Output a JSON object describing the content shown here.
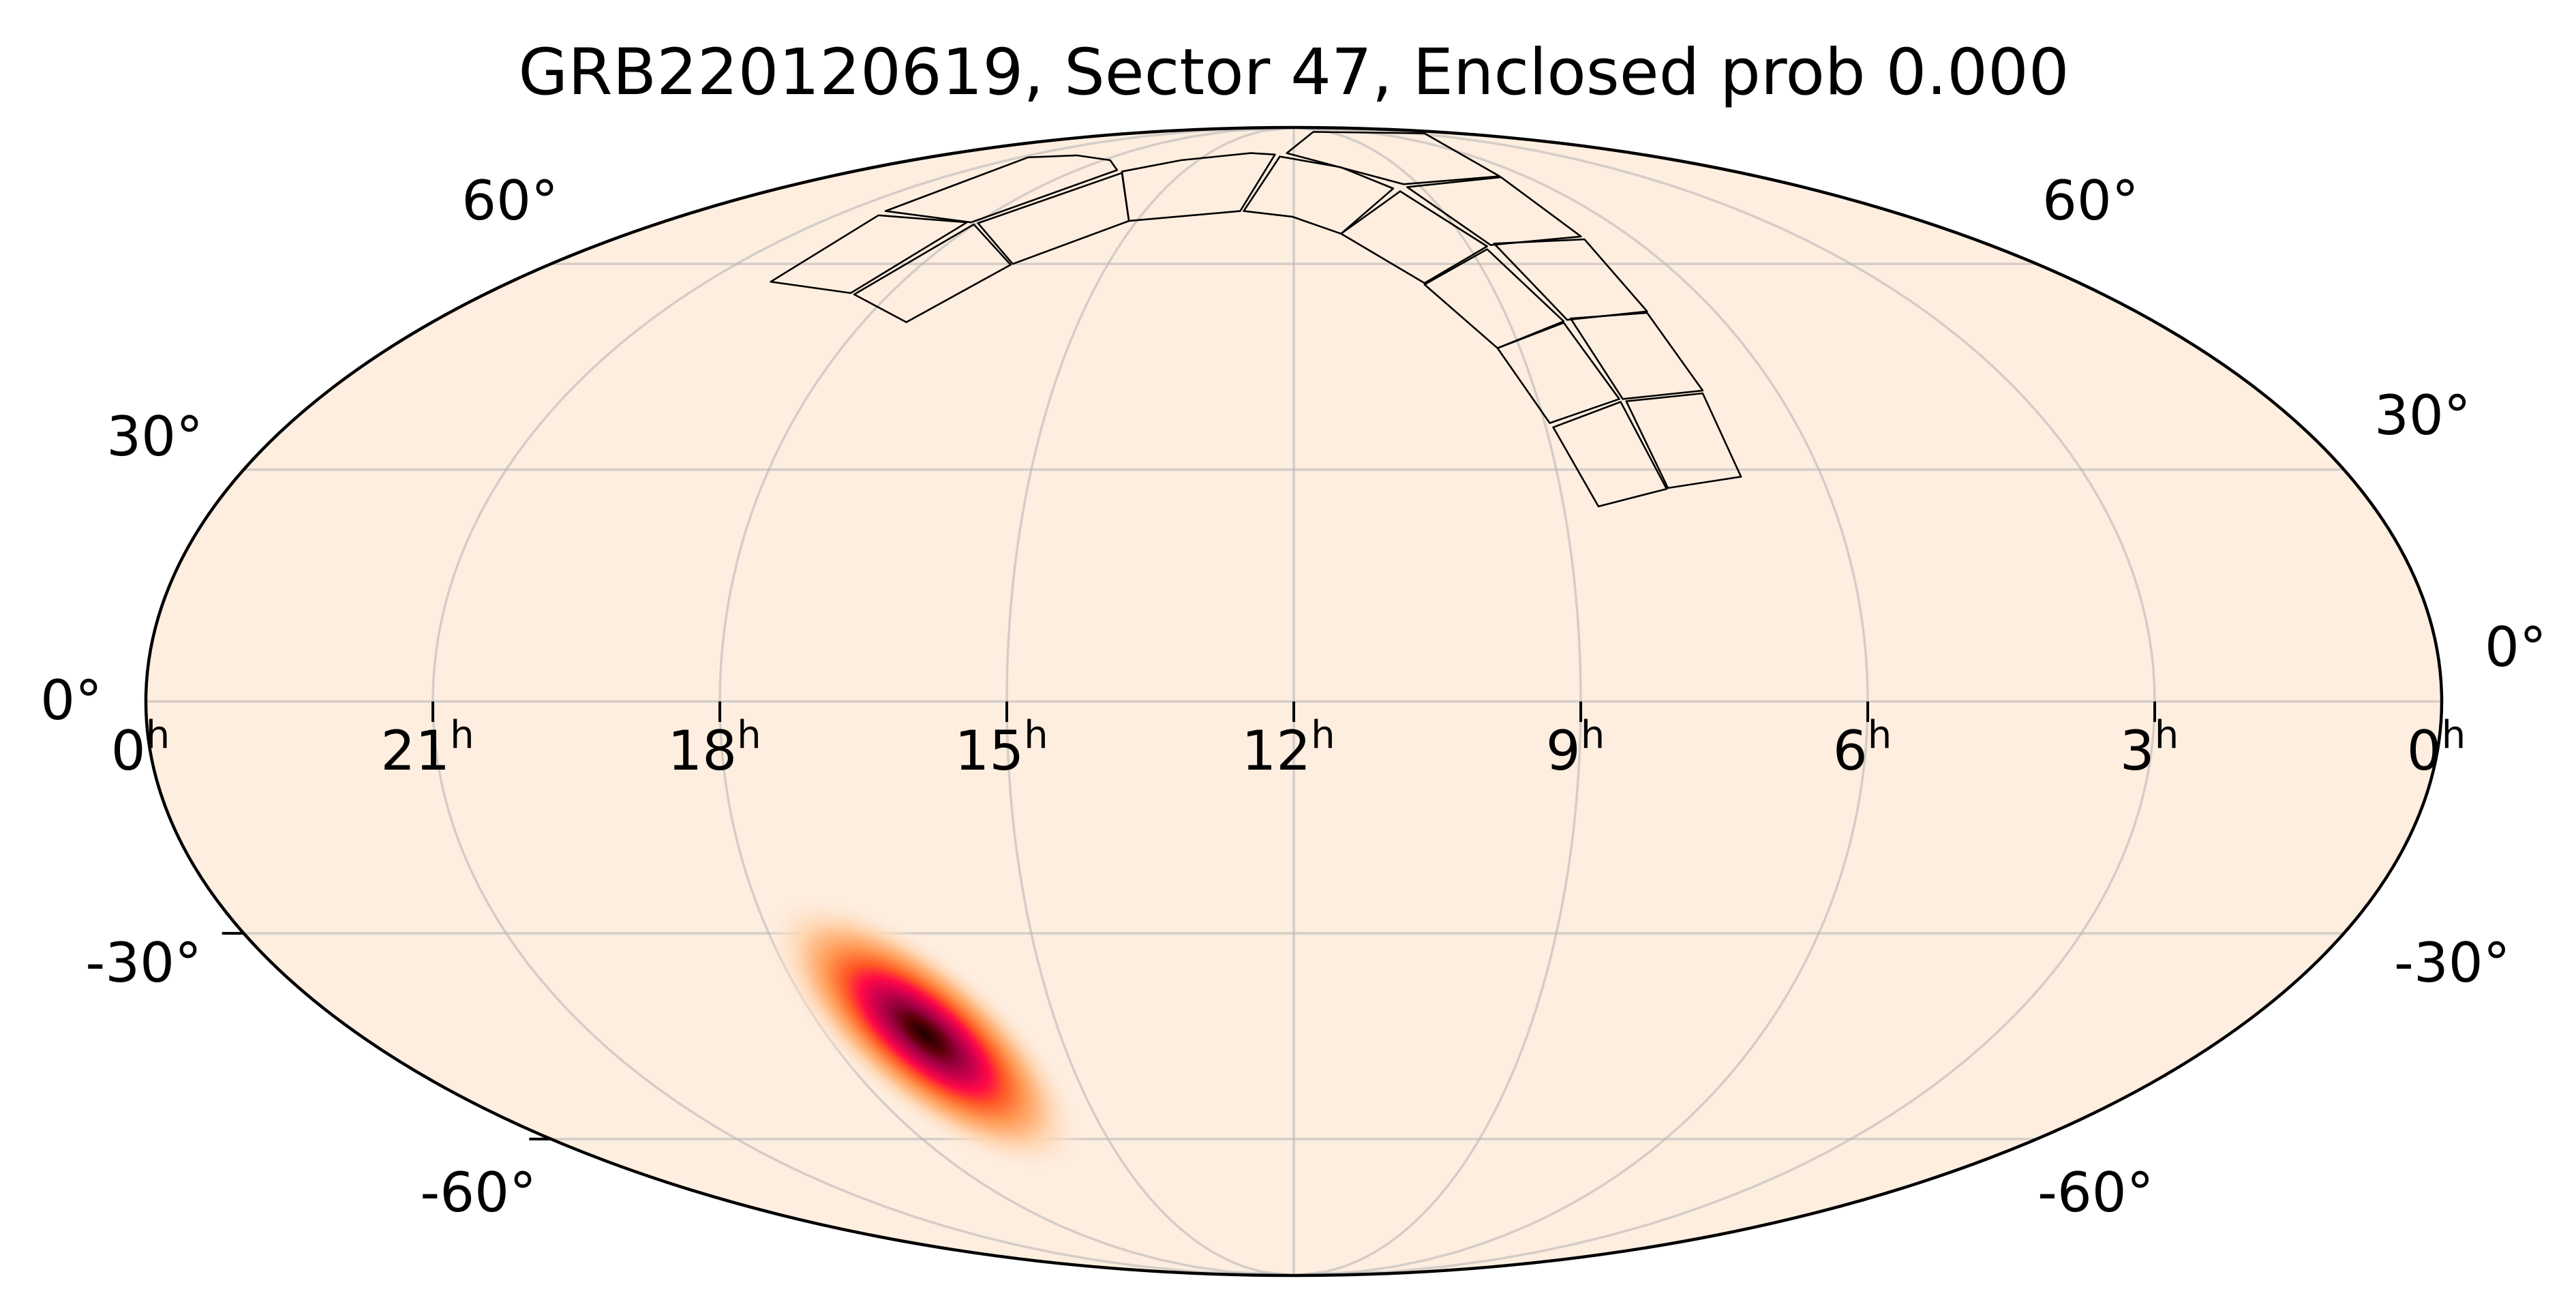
{
  "chart_data": {
    "type": "heatmap",
    "projection": "mollweide",
    "title": "GRB220120619, Sector 47, Enclosed prob 0.000",
    "ra_ticks": [
      {
        "hours": 24,
        "label": "0",
        "unit": "h"
      },
      {
        "hours": 21,
        "label": "21",
        "unit": "h"
      },
      {
        "hours": 18,
        "label": "18",
        "unit": "h"
      },
      {
        "hours": 15,
        "label": "15",
        "unit": "h"
      },
      {
        "hours": 12,
        "label": "12",
        "unit": "h"
      },
      {
        "hours": 9,
        "label": "9",
        "unit": "h"
      },
      {
        "hours": 6,
        "label": "6",
        "unit": "h"
      },
      {
        "hours": 3,
        "label": "3",
        "unit": "h"
      },
      {
        "hours": 0,
        "label": "0",
        "unit": "h"
      }
    ],
    "dec_ticks": [
      {
        "deg": 60,
        "label": "60°"
      },
      {
        "deg": 30,
        "label": "30°"
      },
      {
        "deg": 0,
        "label": "0°"
      },
      {
        "deg": -30,
        "label": "-30°"
      },
      {
        "deg": -60,
        "label": "-60°"
      }
    ],
    "grid": true,
    "ra_direction": "increasing to the left",
    "localization_peak": {
      "ra_deg": 251,
      "dec_deg": -44
    },
    "colormap": "magma-like (pale peach to black)",
    "colors": {
      "background": "#feeee0",
      "grid": "#b8b8b8",
      "footprint": "#000000",
      "peak": "#2a0000",
      "mid": "#ff0a45",
      "outer": "#ff8a3c"
    },
    "footprint_label": "TESS Sector 47 CCD footprints"
  }
}
